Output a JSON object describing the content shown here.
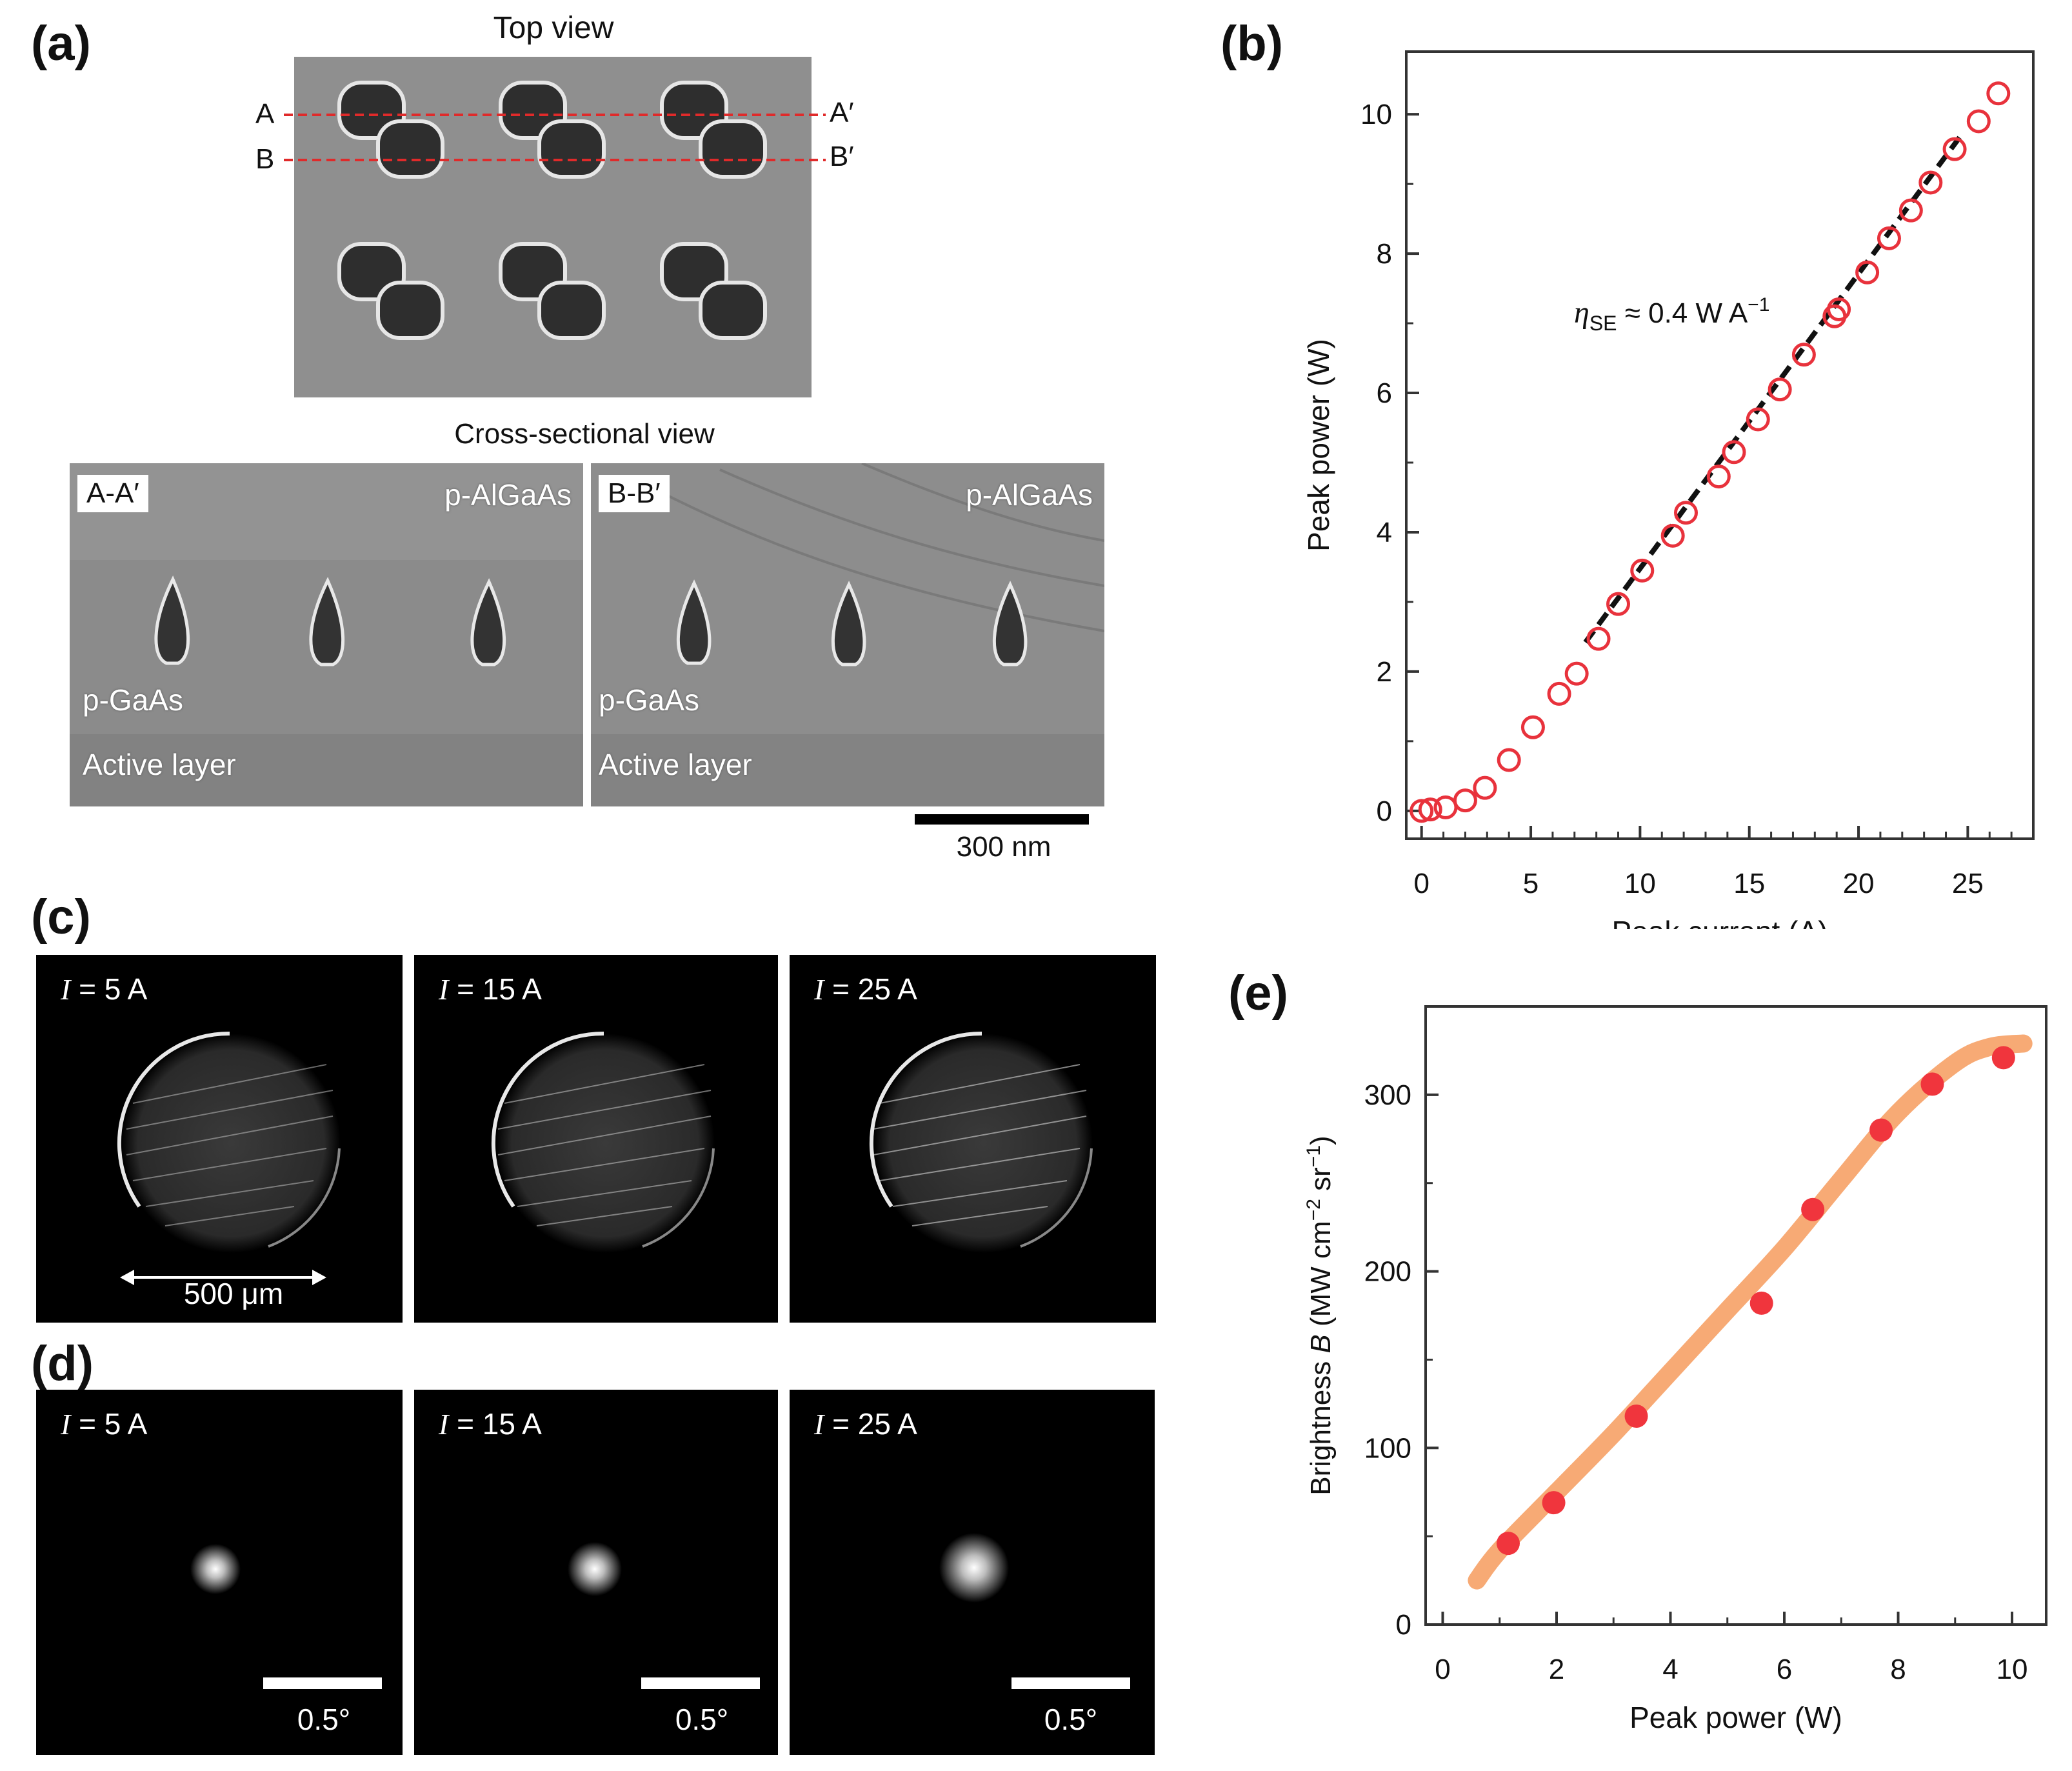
{
  "panels": {
    "a": {
      "label": "(a)",
      "top_title": "Top view",
      "cut_labels": {
        "a": "A",
        "a_prime": "A′",
        "b": "B",
        "b_prime": "B′"
      },
      "cross_title": "Cross-sectional view",
      "left": {
        "tag": "A-A′",
        "upper": "p-AlGaAs",
        "mid": "p-GaAs",
        "low": "Active layer"
      },
      "right": {
        "tag": "B-B′",
        "upper": "p-AlGaAs",
        "mid": "p-GaAs",
        "low": "Active layer"
      },
      "scale": "300 nm"
    },
    "c": {
      "label": "(c)",
      "images": [
        {
          "i": "I",
          "eq": " = 5 A"
        },
        {
          "i": "I",
          "eq": " = 15 A"
        },
        {
          "i": "I",
          "eq": " = 25 A"
        }
      ],
      "scale": "500 μm"
    },
    "d": {
      "label": "(d)",
      "images": [
        {
          "i": "I",
          "eq": " = 5 A",
          "scale": "0.5°",
          "spot": 0.26
        },
        {
          "i": "I",
          "eq": " = 15 A",
          "scale": "0.5°",
          "spot": 0.28
        },
        {
          "i": "I",
          "eq": " = 25 A",
          "scale": "0.5°",
          "spot": 0.36
        }
      ]
    }
  },
  "chart_data": [
    {
      "panel": "(b)",
      "type": "scatter",
      "xlabel": "Peak current (A)",
      "ylabel": "Peak power (W)",
      "xlim": [
        -0.7,
        28
      ],
      "ylim": [
        -0.4,
        10.9
      ],
      "xticks": [
        0,
        5,
        10,
        15,
        20,
        25
      ],
      "yticks": [
        0,
        2,
        4,
        6,
        8,
        10
      ],
      "annotation": {
        "sym": "η",
        "sub": "SE",
        "text": " ≈ 0.4 W A",
        "sup": "−1"
      },
      "series": [
        {
          "marker": "open-circle",
          "color": "#e8323c",
          "x": [
            0,
            0.4,
            1.1,
            2.0,
            2.9,
            4.0,
            5.1,
            6.3,
            7.1,
            8.1,
            9.0,
            10.1,
            11.5,
            12.1,
            13.6,
            14.3,
            15.4,
            16.4,
            17.5,
            18.9,
            19.1,
            20.4,
            21.4,
            22.4,
            23.3,
            24.4,
            25.5,
            26.4
          ],
          "y": [
            0,
            0.02,
            0.05,
            0.15,
            0.33,
            0.73,
            1.2,
            1.68,
            1.97,
            2.47,
            2.97,
            3.45,
            3.95,
            4.28,
            4.8,
            5.15,
            5.62,
            6.05,
            6.55,
            7.1,
            7.2,
            7.73,
            8.22,
            8.62,
            9.02,
            9.5,
            9.9,
            10.3
          ]
        }
      ],
      "fit_line": {
        "style": "dashed",
        "color": "#111111",
        "x": [
          7.5,
          24.7
        ],
        "y": [
          2.42,
          9.7
        ]
      }
    },
    {
      "panel": "(e)",
      "type": "scatter",
      "xlabel": "Peak power (W)",
      "ylabel": {
        "before": "Brightness ",
        "var": "B",
        "after": " (MW cm",
        "sup1": "−2",
        "mid": " sr",
        "sup2": "−1",
        "end": ")"
      },
      "xlim": [
        -0.3,
        10.6
      ],
      "ylim": [
        0,
        350
      ],
      "xticks": [
        0,
        2,
        4,
        6,
        8,
        10
      ],
      "yticks": [
        0,
        100,
        200,
        300
      ],
      "series": [
        {
          "marker": "filled-circle",
          "color": "#f0353d",
          "x": [
            1.15,
            1.95,
            3.4,
            5.6,
            6.5,
            7.7,
            8.6,
            9.85
          ],
          "y": [
            46,
            69,
            118,
            182,
            235,
            280,
            306,
            321
          ]
        }
      ],
      "trend_curve": {
        "color": "#f7a56e",
        "x": [
          0.6,
          1.0,
          2.0,
          3.0,
          4.0,
          5.0,
          6.0,
          7.0,
          8.0,
          9.0,
          9.6,
          10.2
        ],
        "y": [
          25,
          42,
          75,
          108,
          143,
          178,
          213,
          252,
          290,
          318,
          327,
          329
        ]
      }
    }
  ]
}
